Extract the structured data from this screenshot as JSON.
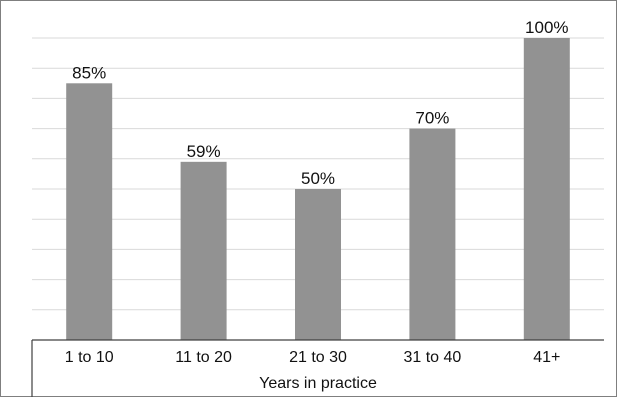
{
  "chart_data": {
    "type": "bar",
    "categories": [
      "1 to 10",
      "11 to 20",
      "21 to 30",
      "31 to 40",
      "41+"
    ],
    "values": [
      85,
      59,
      50,
      70,
      100
    ],
    "value_labels": [
      "85%",
      "59%",
      "50%",
      "70%",
      "100%"
    ],
    "title": "",
    "xlabel": "Years in practice",
    "ylabel": "",
    "ylim": [
      0,
      100
    ],
    "grid": true,
    "bar_color": "#929292"
  }
}
